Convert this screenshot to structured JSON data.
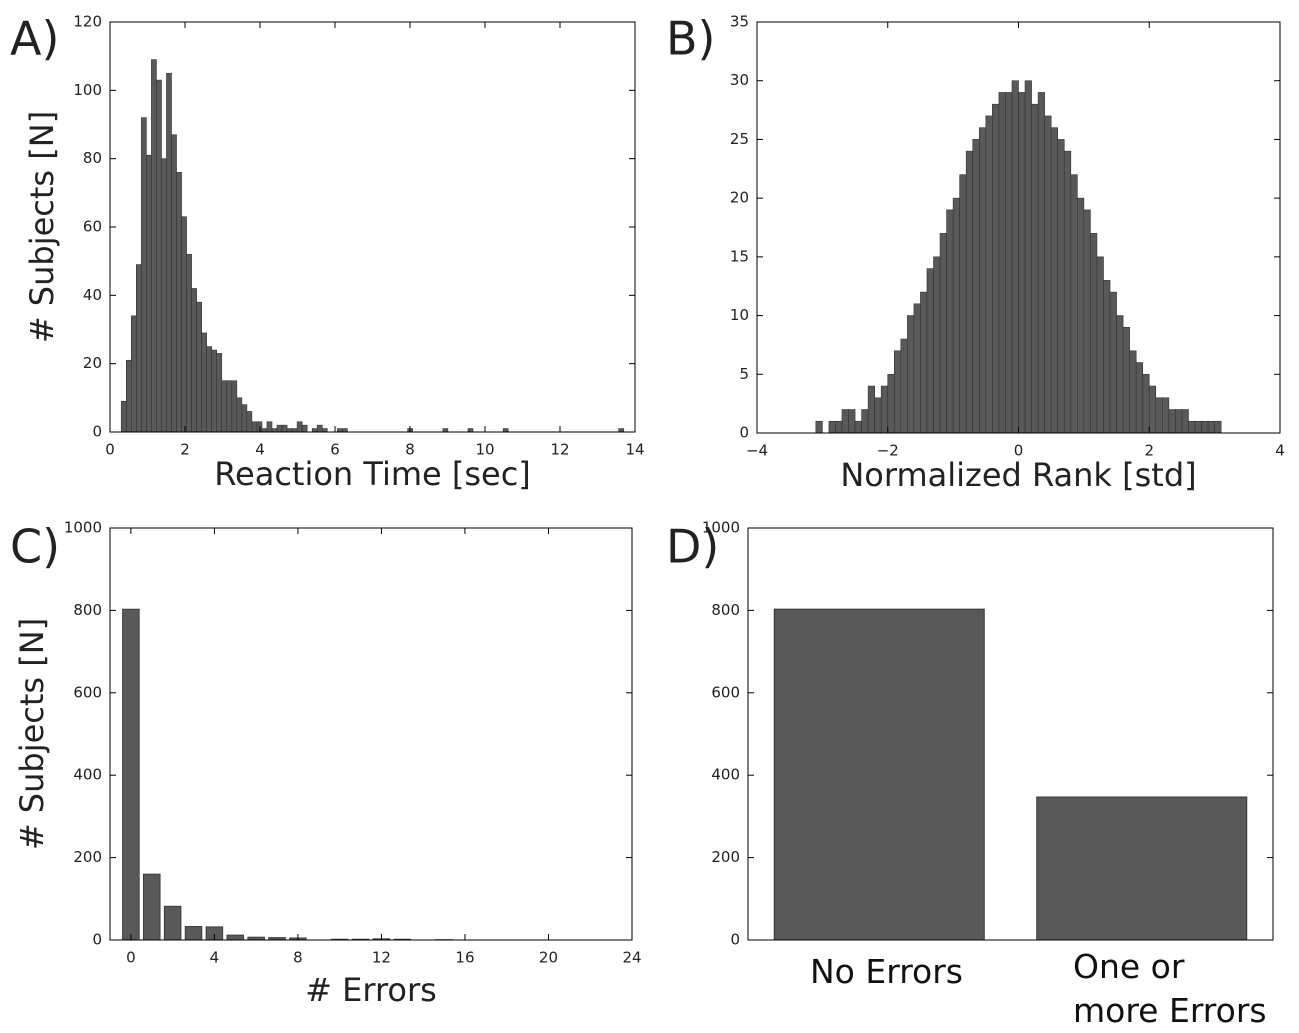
{
  "chart_data": [
    {
      "type": "histogram",
      "panel_label": "A)",
      "xlabel": "Reaction Time [sec]",
      "ylabel": "# Subjects [N]",
      "color": "#595959",
      "bins": [
        0.3,
        0.434,
        0.568,
        0.702,
        0.836,
        0.97,
        1.104,
        1.238,
        1.372,
        1.506,
        1.64,
        1.774,
        1.908,
        2.042,
        2.176,
        2.31,
        2.444,
        2.578,
        2.712,
        2.846,
        2.98,
        3.114,
        3.248,
        3.382,
        3.516,
        3.65,
        3.784,
        3.918,
        4.052,
        4.186,
        4.32,
        4.454,
        4.588,
        4.722,
        4.856,
        4.99,
        5.124,
        5.258,
        5.392,
        5.526,
        5.66,
        5.794,
        5.928,
        6.062,
        6.196,
        6.33,
        6.464,
        6.598,
        6.732,
        6.866,
        7.0,
        7.134,
        7.268,
        7.402,
        7.536,
        7.67,
        7.804,
        7.938,
        8.072,
        8.206,
        8.34,
        8.474,
        8.608,
        8.742,
        8.876,
        9.01,
        9.144,
        9.278,
        9.412,
        9.546,
        9.68,
        9.814,
        9.948,
        10.082,
        10.216,
        10.35,
        10.484,
        10.618,
        10.752,
        10.886,
        11.02,
        11.154,
        11.288,
        11.422,
        11.556,
        11.69,
        11.824,
        11.958,
        12.092,
        12.226,
        12.36,
        12.494,
        12.628,
        12.762,
        12.896,
        13.03,
        13.164,
        13.298,
        13.432,
        13.566,
        13.7
      ],
      "values": [
        9,
        21,
        34,
        49,
        92,
        81,
        109,
        103,
        80,
        105,
        87,
        76,
        63,
        52,
        42,
        38,
        29,
        25,
        24,
        23,
        15,
        15,
        15,
        10,
        8,
        6,
        3,
        3,
        1,
        3,
        1,
        2,
        2,
        1,
        1,
        3,
        2,
        0,
        1,
        2,
        1,
        0,
        0,
        1,
        1,
        0,
        0,
        0,
        0,
        0,
        0,
        0,
        0,
        0,
        0,
        0,
        0,
        1,
        0,
        0,
        0,
        0,
        0,
        0,
        1,
        0,
        0,
        0,
        0,
        1,
        0,
        0,
        0,
        0,
        0,
        0,
        1,
        0,
        0,
        0,
        0,
        0,
        0,
        0,
        0,
        0,
        0,
        0,
        0,
        0,
        0,
        0,
        0,
        0,
        0,
        0,
        0,
        0,
        0,
        1
      ],
      "xlim": [
        0,
        14
      ],
      "ylim": [
        0,
        120
      ],
      "xticks": [
        0,
        2,
        4,
        6,
        8,
        10,
        12,
        14
      ],
      "yticks": [
        0,
        20,
        40,
        60,
        80,
        100,
        120
      ]
    },
    {
      "type": "histogram",
      "panel_label": "B)",
      "xlabel": "Normalized Rank [std]",
      "color": "#595959",
      "bins": [
        -3.1,
        -3.0,
        -2.9,
        -2.8,
        -2.7,
        -2.6,
        -2.5,
        -2.4,
        -2.3,
        -2.2,
        -2.1,
        -2.0,
        -1.9,
        -1.8,
        -1.7,
        -1.6,
        -1.5,
        -1.4,
        -1.3,
        -1.2,
        -1.1,
        -1.0,
        -0.9,
        -0.8,
        -0.7,
        -0.6,
        -0.5,
        -0.4,
        -0.3,
        -0.2,
        -0.1,
        0,
        0.1,
        0.2,
        0.3,
        0.4,
        0.5,
        0.6,
        0.7,
        0.8,
        0.9,
        1.0,
        1.1,
        1.2,
        1.3,
        1.4,
        1.5,
        1.6,
        1.7,
        1.8,
        1.9,
        2.0,
        2.1,
        2.2,
        2.3,
        2.4,
        2.5,
        2.6,
        2.7,
        2.8,
        2.9,
        3.0,
        3.1
      ],
      "values": [
        1,
        0,
        1,
        1,
        2,
        2,
        1,
        2,
        4,
        3,
        4,
        5,
        7,
        8,
        10,
        11,
        12,
        14,
        15,
        17,
        19,
        20,
        22,
        24,
        25,
        26,
        27,
        28,
        29,
        29,
        30,
        29,
        30,
        28,
        29,
        27,
        26,
        25,
        24,
        22,
        20,
        19,
        17,
        15,
        13,
        12,
        10,
        9,
        7,
        6,
        5,
        4,
        3,
        3,
        2,
        2,
        2,
        1,
        1,
        1,
        1,
        1
      ],
      "xlim": [
        -4,
        4
      ],
      "ylim": [
        0,
        35
      ],
      "xticks": [
        {
          "value": -4,
          "label": "−4"
        },
        {
          "value": -2,
          "label": "−2"
        },
        0,
        2,
        4
      ],
      "yticks": [
        0,
        5,
        10,
        15,
        20,
        25,
        30,
        35
      ]
    },
    {
      "type": "bar",
      "panel_label": "C)",
      "xlabel": "# Errors",
      "ylabel": "# Subjects [N]",
      "color": "#595959",
      "x": [
        0,
        1,
        2,
        3,
        4,
        5,
        6,
        7,
        8,
        9,
        10,
        11,
        12,
        13,
        14,
        15
      ],
      "values": [
        803,
        160,
        82,
        33,
        32,
        12,
        7,
        6,
        5,
        0,
        2,
        2,
        3,
        2,
        0,
        1
      ],
      "xlim": [
        -1,
        24
      ],
      "ylim": [
        0,
        1000
      ],
      "xticks": [
        0,
        4,
        8,
        12,
        16,
        20,
        24
      ],
      "yticks": [
        0,
        200,
        400,
        600,
        800,
        1000
      ]
    },
    {
      "type": "bar",
      "panel_label": "D)",
      "color": "#595959",
      "categories": [
        "No Errors",
        "One or\nmore Errors"
      ],
      "values": [
        803,
        347
      ],
      "ylim": [
        0,
        1000
      ],
      "yticks": [
        0,
        200,
        400,
        600,
        800,
        1000
      ]
    }
  ]
}
